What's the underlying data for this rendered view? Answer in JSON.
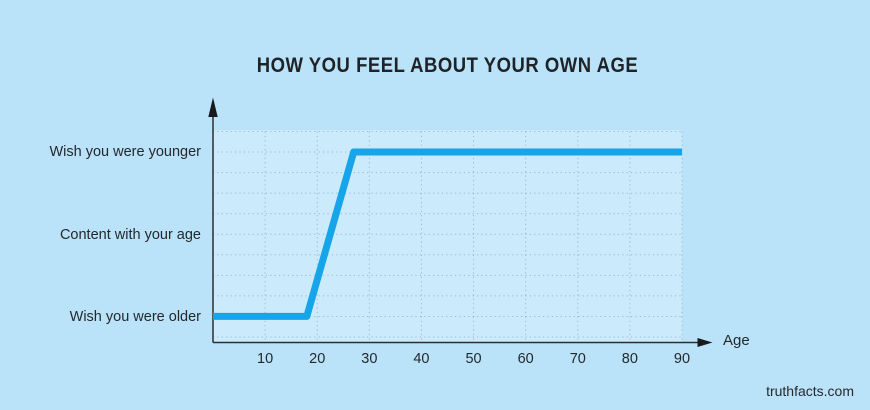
{
  "page": {
    "watermark": "truthfacts.com"
  },
  "colors": {
    "background": "#bae3fa",
    "plot_background": "#cbeafb",
    "line": "#16a5e8",
    "axis": "#2b2f33",
    "text": "#24282b",
    "grid_dots": "#5e7d90"
  },
  "chart_data": {
    "type": "line",
    "title": "HOW YOU FEEL ABOUT YOUR OWN AGE",
    "xlabel": "Age",
    "ylabel": "",
    "x_ticks": [
      10,
      20,
      30,
      40,
      50,
      60,
      70,
      80,
      90
    ],
    "x_range": [
      0,
      90
    ],
    "y_levels": [
      "Wish you were older",
      "Content with your age",
      "Wish you were younger"
    ],
    "grid": "dotted",
    "legend_position": "none",
    "series": [
      {
        "name": "how-you-feel",
        "color": "#16a5e8",
        "point_format": "[age, feeling_level_index]",
        "points": [
          [
            0,
            0
          ],
          [
            18,
            0
          ],
          [
            27,
            2
          ],
          [
            90,
            2
          ]
        ]
      }
    ]
  }
}
